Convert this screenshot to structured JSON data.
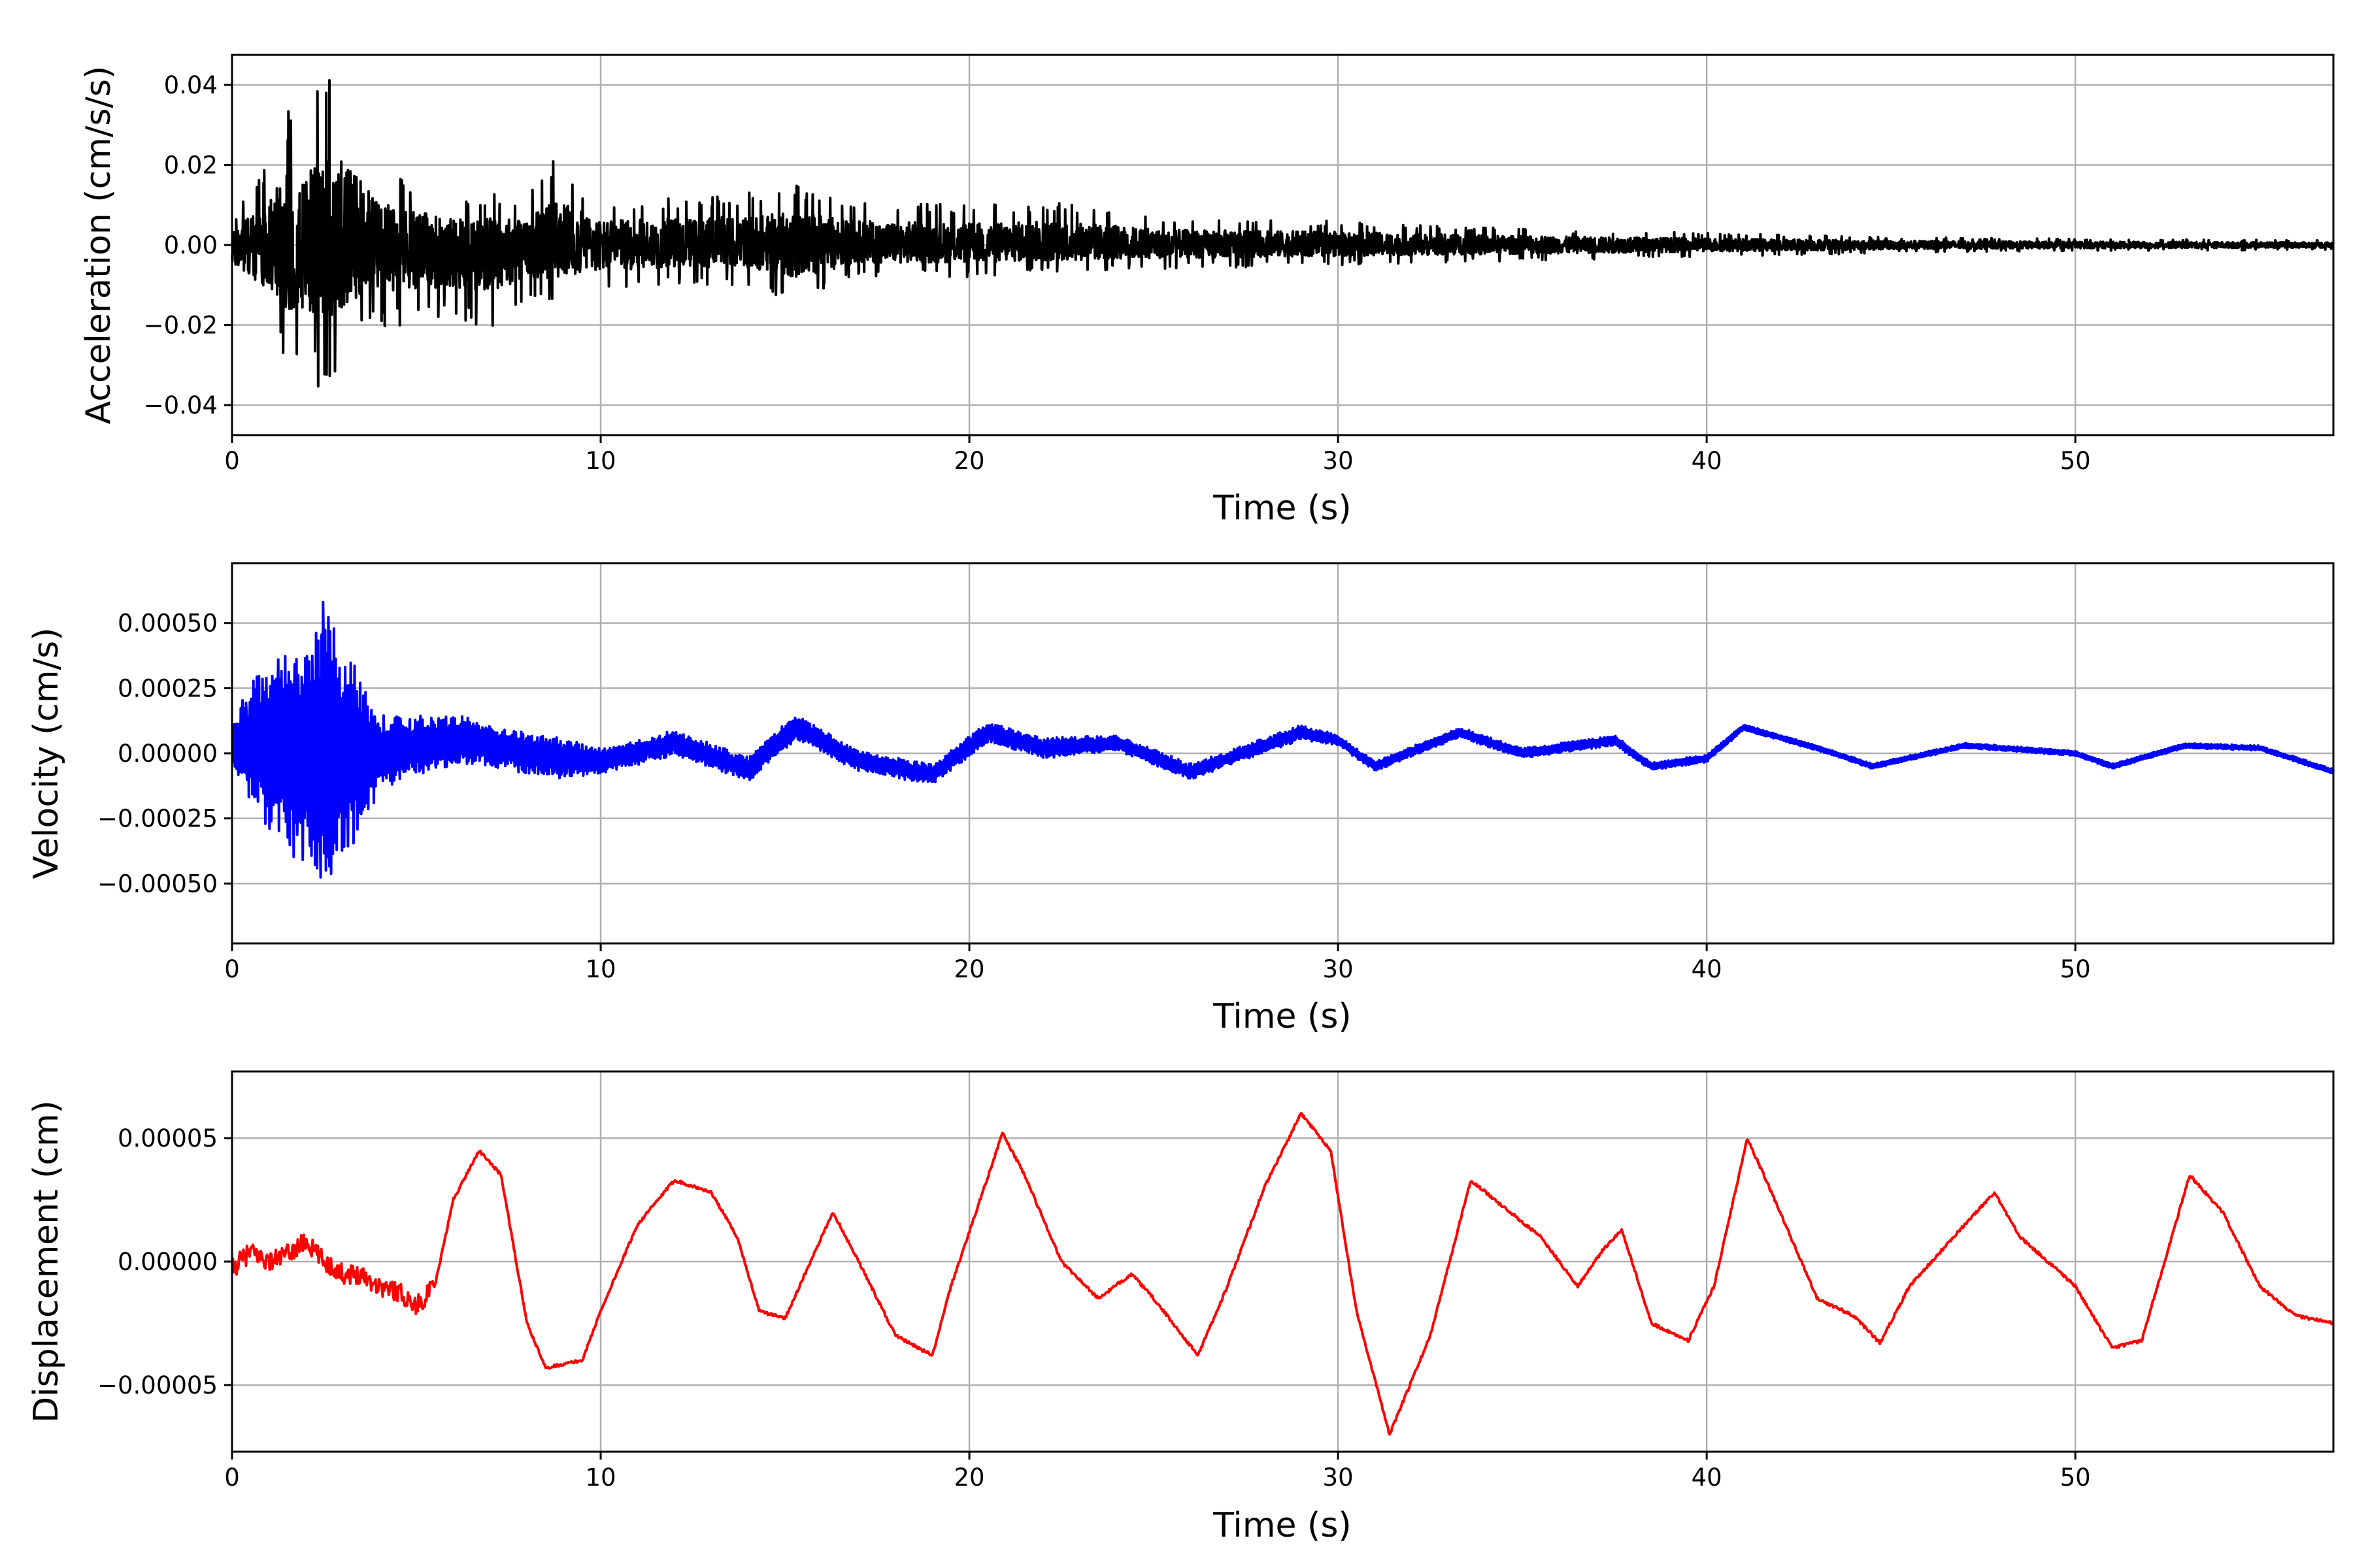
{
  "chart_data": [
    {
      "type": "line",
      "xlabel": "Time (s)",
      "ylabel": "Acceleration (cm/s/s)",
      "xlim": [
        0,
        57
      ],
      "ylim": [
        -0.0475,
        0.0475
      ],
      "x_ticks": [
        0,
        10,
        20,
        30,
        40,
        50
      ],
      "x_tick_labels": [
        "0",
        "10",
        "20",
        "30",
        "40",
        "50"
      ],
      "y_ticks": [
        -0.04,
        -0.02,
        0.0,
        0.02,
        0.04
      ],
      "y_tick_labels": [
        "−0.04",
        "−0.02",
        "0.00",
        "0.02",
        "0.04"
      ],
      "grid": true,
      "series": [
        {
          "color": "#000000",
          "x": [
            0,
            0.5,
            1.0,
            1.5,
            2.0,
            2.5,
            3.0,
            3.5,
            4.0,
            5,
            6,
            7,
            8,
            8.7,
            10,
            12,
            14,
            15.3,
            17,
            20,
            22.7,
            25,
            30,
            35,
            40,
            45,
            50,
            57
          ],
          "envelope_upper": [
            0.005,
            0.015,
            0.02,
            0.034,
            0.032,
            0.043,
            0.039,
            0.03,
            0.02,
            0.015,
            0.012,
            0.013,
            0.012,
            0.021,
            0.011,
            0.012,
            0.013,
            0.015,
            0.011,
            0.01,
            0.011,
            0.007,
            0.006,
            0.004,
            0.003,
            0.002,
            0.0015,
            0.0012
          ],
          "envelope_lower": [
            -0.01,
            -0.015,
            -0.02,
            -0.029,
            -0.032,
            -0.037,
            -0.031,
            -0.022,
            -0.021,
            -0.02,
            -0.02,
            -0.021,
            -0.015,
            -0.015,
            -0.012,
            -0.01,
            -0.01,
            -0.015,
            -0.008,
            -0.008,
            -0.007,
            -0.006,
            -0.005,
            -0.004,
            -0.003,
            -0.002,
            -0.0015,
            -0.0012
          ]
        }
      ]
    },
    {
      "type": "line",
      "xlabel": "Time (s)",
      "ylabel": "Velocity (cm/s)",
      "xlim": [
        0,
        57
      ],
      "ylim": [
        -0.00073,
        0.00073
      ],
      "x_ticks": [
        0,
        10,
        20,
        30,
        40,
        50
      ],
      "x_tick_labels": [
        "0",
        "10",
        "20",
        "30",
        "40",
        "50"
      ],
      "y_ticks": [
        -0.0005,
        -0.00025,
        0.0,
        0.00025,
        0.0005
      ],
      "y_tick_labels": [
        "−0.00050",
        "−0.00025",
        "0.00000",
        "0.00025",
        "0.00050"
      ],
      "grid": true,
      "series": [
        {
          "color": "#0000ff",
          "x": [
            0,
            1,
            2,
            2.5,
            3,
            4,
            5,
            6.5,
            8,
            9,
            10,
            12,
            14,
            15.3,
            17,
            19,
            20.5,
            22,
            24,
            26,
            28,
            29,
            30,
            31,
            33.3,
            35,
            37.5,
            38.5,
            40,
            41,
            43,
            44.5,
            47,
            50,
            51,
            53,
            55,
            57
          ],
          "trend": [
            5e-05,
            3e-05,
            0.0,
            2e-05,
            -2e-05,
            0.0,
            3e-05,
            5e-05,
            0.0,
            -2e-05,
            -3e-05,
            4e-05,
            -6e-05,
            0.0001,
            -3e-05,
            -8e-05,
            8e-05,
            2e-05,
            4e-05,
            -7e-05,
            3e-05,
            8e-05,
            5e-05,
            -5e-05,
            8e-05,
            0.0,
            5e-05,
            -5e-05,
            -2e-05,
            0.0001,
            2e-05,
            -5e-05,
            3e-05,
            0.0,
            -5e-05,
            3e-05,
            2e-05,
            -7e-05
          ],
          "amplitude": [
            0.0001,
            0.00035,
            0.00045,
            0.00062,
            0.00045,
            0.00015,
            0.00012,
            9e-05,
            8e-05,
            8e-05,
            5e-05,
            5e-05,
            5e-05,
            5e-05,
            4e-05,
            4e-05,
            4e-05,
            4e-05,
            3e-05,
            3e-05,
            3e-05,
            3e-05,
            2e-05,
            2e-05,
            2e-05,
            2e-05,
            2e-05,
            1.5e-05,
            1.5e-05,
            1.2e-05,
            1e-05,
            1e-05,
            1e-05,
            1e-05,
            1e-05,
            1e-05,
            1e-05,
            1e-05
          ]
        }
      ]
    },
    {
      "type": "line",
      "xlabel": "Time (s)",
      "ylabel": "Displacement (cm)",
      "xlim": [
        0,
        57
      ],
      "ylim": [
        -7.7e-05,
        7.7e-05
      ],
      "x_ticks": [
        0,
        10,
        20,
        30,
        40,
        50
      ],
      "x_tick_labels": [
        "0",
        "10",
        "20",
        "30",
        "40",
        "50"
      ],
      "y_ticks": [
        -5e-05,
        0.0,
        5e-05
      ],
      "y_tick_labels": [
        "−0.00005",
        "0.00000",
        "0.00005"
      ],
      "grid": true,
      "series": [
        {
          "color": "#ff0000",
          "x": [
            0,
            0.5,
            1.0,
            1.5,
            2.0,
            2.5,
            3.0,
            3.5,
            4.0,
            4.5,
            5.0,
            5.5,
            6.0,
            6.7,
            7.3,
            8.0,
            8.5,
            9.5,
            10.0,
            11.0,
            12.0,
            13.0,
            13.7,
            14.3,
            15.0,
            16.3,
            17.0,
            18.0,
            19.0,
            19.5,
            20.9,
            21.5,
            22.5,
            23.5,
            24.4,
            25.0,
            26.2,
            27.0,
            28.0,
            29.0,
            29.8,
            30.5,
            31.4,
            32.5,
            33.6,
            34.5,
            35.5,
            36.5,
            37.2,
            37.7,
            38.5,
            39.5,
            40.2,
            41.1,
            41.7,
            43.0,
            44.0,
            44.7,
            45.5,
            47.0,
            47.8,
            48.5,
            50.0,
            51.0,
            51.8,
            53.1,
            54.0,
            55.0,
            56.0,
            57.0
          ],
          "y": [
            -3e-06,
            4e-06,
            0.0,
            3e-06,
            8e-06,
            0.0,
            -5e-06,
            -5e-06,
            -1e-05,
            -1.2e-05,
            -1.8e-05,
            -1e-05,
            2.5e-05,
            4.5e-05,
            3.5e-05,
            -2.5e-05,
            -4.3e-05,
            -4e-05,
            -2e-05,
            1.5e-05,
            3.3e-05,
            2.8e-05,
            1e-05,
            -2e-05,
            -2.3e-05,
            2e-05,
            0.0,
            -3e-05,
            -3.8e-05,
            -1e-05,
            5.2e-05,
            3.5e-05,
            0.0,
            -1.5e-05,
            -5e-06,
            -1.5e-05,
            -3.8e-05,
            -1e-05,
            3e-05,
            6e-05,
            4.5e-05,
            -2e-05,
            -7e-05,
            -3e-05,
            3.3e-05,
            2.2e-05,
            1e-05,
            -1e-05,
            5e-06,
            1.3e-05,
            -2.5e-05,
            -3.2e-05,
            -1e-05,
            5e-05,
            3e-05,
            -1.5e-05,
            -2.2e-05,
            -3.3e-05,
            -1e-05,
            1.5e-05,
            2.8e-05,
            1e-05,
            -1e-05,
            -3.5e-05,
            -3.2e-05,
            3.5e-05,
            2e-05,
            -1e-05,
            -2.2e-05,
            -2.5e-05
          ]
        }
      ]
    }
  ]
}
